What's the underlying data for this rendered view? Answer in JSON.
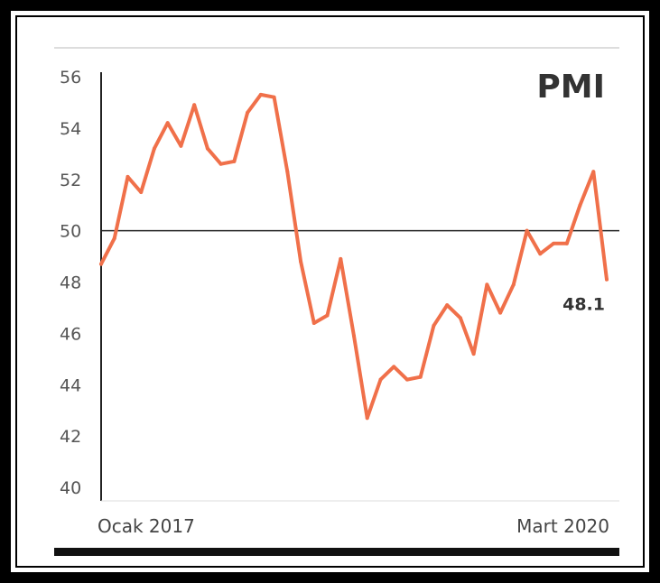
{
  "chart_data": {
    "type": "line",
    "title": "PMI",
    "xlabel": "",
    "ylabel": "",
    "x_start_label": "Ocak 2017",
    "x_end_label": "Mart 2020",
    "ylim": [
      40,
      56
    ],
    "yticks": [
      40,
      42,
      44,
      46,
      48,
      50,
      52,
      54,
      56
    ],
    "reference_line": 50,
    "end_label": "48.1",
    "color": "#f0704a",
    "series": [
      {
        "values": [
          48.7,
          49.7,
          52.1,
          51.5,
          53.2,
          54.2,
          53.3,
          54.9,
          53.2,
          52.6,
          52.7,
          54.6,
          55.3,
          55.2,
          52.3,
          48.8,
          46.4,
          46.7,
          48.9,
          45.9,
          42.7,
          44.2,
          44.7,
          44.2,
          44.3,
          46.3,
          47.1,
          46.6,
          45.2,
          47.9,
          46.8,
          47.9,
          50.0,
          49.1,
          49.5,
          49.5,
          51.0,
          52.3,
          48.1
        ]
      }
    ]
  }
}
